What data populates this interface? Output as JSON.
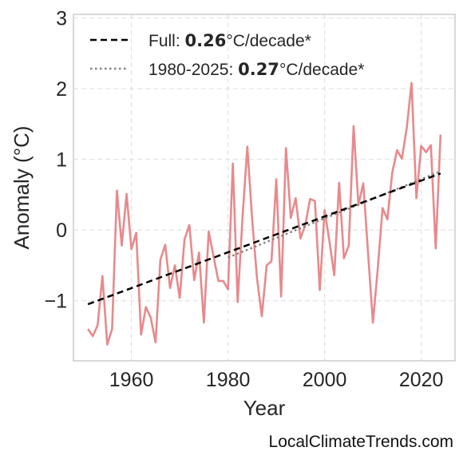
{
  "chart_data": {
    "type": "line",
    "title": "",
    "xlabel": "Year",
    "ylabel": "Anomaly (°C)",
    "xlim": [
      1948,
      2027
    ],
    "ylim": [
      -1.85,
      3.05
    ],
    "xticks": [
      1960,
      1980,
      2000,
      2020
    ],
    "yticks": [
      -1,
      0,
      1,
      2,
      3
    ],
    "ytick_labels": [
      "−1",
      "0",
      "1",
      "2",
      "3"
    ],
    "grid": true,
    "legend_position": "top-left",
    "colors": {
      "anomaly": "#e8898c",
      "trend_full": "#000000",
      "trend_recent": "#808080",
      "grid": "#e3e3e3",
      "frame": "#cccccc"
    },
    "series": [
      {
        "style": "solid",
        "x": [
          1951,
          1952,
          1953,
          1954,
          1955,
          1956,
          1957,
          1958,
          1959,
          1960,
          1961,
          1962,
          1963,
          1964,
          1965,
          1966,
          1967,
          1968,
          1969,
          1970,
          1971,
          1972,
          1973,
          1974,
          1975,
          1976,
          1977,
          1978,
          1979,
          1980,
          1981,
          1982,
          1983,
          1984,
          1985,
          1986,
          1987,
          1988,
          1989,
          1990,
          1991,
          1992,
          1993,
          1994,
          1995,
          1996,
          1997,
          1998,
          1999,
          2000,
          2001,
          2002,
          2003,
          2004,
          2005,
          2006,
          2007,
          2008,
          2009,
          2010,
          2011,
          2012,
          2013,
          2014,
          2015,
          2016,
          2017,
          2018,
          2019,
          2020,
          2021,
          2022,
          2023,
          2024
        ],
        "y": [
          -1.4,
          -1.5,
          -1.35,
          -0.65,
          -1.62,
          -1.4,
          0.56,
          -0.22,
          0.51,
          -0.27,
          -0.04,
          -1.48,
          -1.09,
          -1.24,
          -1.59,
          -0.42,
          -0.21,
          -0.82,
          -0.5,
          -0.96,
          -0.13,
          0.07,
          -0.71,
          -0.32,
          -1.31,
          -0.02,
          -0.37,
          -0.72,
          -0.72,
          -0.84,
          0.94,
          -1.02,
          0.17,
          1.18,
          0.15,
          -0.68,
          -1.22,
          -0.5,
          -0.44,
          0.72,
          -0.94,
          1.16,
          0.17,
          0.45,
          -0.12,
          0.07,
          0.44,
          0.41,
          -0.85,
          0.28,
          -0.16,
          -0.64,
          0.67,
          -0.4,
          -0.22,
          1.47,
          0.35,
          0.66,
          -0.33,
          -1.31,
          -0.55,
          0.31,
          0.15,
          0.81,
          1.13,
          1.01,
          1.44,
          2.08,
          0.45,
          1.19,
          1.1,
          1.2,
          -0.26,
          1.35
        ]
      },
      {
        "name": "Full",
        "style": "dashed",
        "rate_label": "0.26",
        "unit_label": "°C/decade*",
        "x": [
          1951,
          2024
        ],
        "y": [
          -1.05,
          0.8
        ]
      },
      {
        "name": "1980-2025",
        "style": "dotted",
        "rate_label": "0.27",
        "unit_label": "°C/decade*",
        "x": [
          1980,
          2024
        ],
        "y": [
          -0.39,
          0.83
        ]
      }
    ]
  },
  "credit": "LocalClimateTrends.com"
}
